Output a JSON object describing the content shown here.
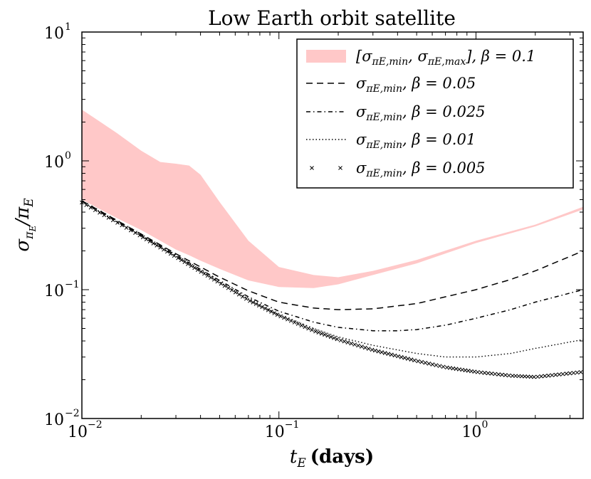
{
  "chart_data": {
    "type": "line",
    "title": "Low Earth orbit satellite",
    "xlabel": "t_E (days)",
    "xlabel_sym": "t",
    "xlabel_sub": "E",
    "xlabel_unit": "(days)",
    "ylabel": "σ_πE / π_E",
    "xscale": "log",
    "yscale": "log",
    "xlim": [
      0.01,
      3.5
    ],
    "ylim": [
      0.01,
      10
    ],
    "xticks": [
      {
        "value": 0.01,
        "base": "10",
        "exp": "−2"
      },
      {
        "value": 0.1,
        "base": "10",
        "exp": "−1"
      },
      {
        "value": 1,
        "base": "10",
        "exp": "0"
      }
    ],
    "yticks": [
      {
        "value": 0.01,
        "base": "10",
        "exp": "−2"
      },
      {
        "value": 0.1,
        "base": "10",
        "exp": "−1"
      },
      {
        "value": 1,
        "base": "10",
        "exp": "0"
      },
      {
        "value": 10,
        "base": "10",
        "exp": "1"
      }
    ],
    "band": {
      "name": "[σπE,min, σπE,max], β = 0.1",
      "color": "#ffc8c8",
      "x": [
        0.01,
        0.015,
        0.02,
        0.025,
        0.03,
        0.035,
        0.04,
        0.05,
        0.07,
        0.1,
        0.15,
        0.2,
        0.3,
        0.5,
        1,
        2,
        3.5
      ],
      "upper": [
        2.5,
        1.65,
        1.2,
        0.98,
        0.95,
        0.92,
        0.78,
        0.48,
        0.24,
        0.15,
        0.13,
        0.125,
        0.14,
        0.17,
        0.24,
        0.32,
        0.44
      ],
      "lower": [
        0.5,
        0.36,
        0.29,
        0.24,
        0.205,
        0.185,
        0.168,
        0.145,
        0.118,
        0.105,
        0.103,
        0.11,
        0.13,
        0.16,
        0.23,
        0.31,
        0.42
      ]
    },
    "series": [
      {
        "name": "σπE,min, β = 0.05",
        "style": "dashed",
        "x": [
          0.01,
          0.02,
          0.03,
          0.05,
          0.07,
          0.1,
          0.15,
          0.2,
          0.3,
          0.5,
          0.7,
          1,
          1.5,
          2,
          3.5
        ],
        "values": [
          0.49,
          0.27,
          0.19,
          0.125,
          0.098,
          0.08,
          0.072,
          0.07,
          0.071,
          0.078,
          0.088,
          0.1,
          0.12,
          0.14,
          0.2
        ]
      },
      {
        "name": "σπE,min, β = 0.025",
        "style": "dashdot",
        "x": [
          0.01,
          0.02,
          0.03,
          0.05,
          0.07,
          0.1,
          0.15,
          0.2,
          0.3,
          0.4,
          0.5,
          0.7,
          1,
          1.5,
          2,
          3.5
        ],
        "values": [
          0.485,
          0.265,
          0.185,
          0.118,
          0.088,
          0.068,
          0.056,
          0.051,
          0.048,
          0.048,
          0.049,
          0.053,
          0.06,
          0.07,
          0.08,
          0.1
        ]
      },
      {
        "name": "σπE,min, β = 0.01",
        "style": "dotted",
        "x": [
          0.01,
          0.02,
          0.03,
          0.05,
          0.07,
          0.1,
          0.15,
          0.2,
          0.3,
          0.5,
          0.7,
          1,
          1.5,
          2,
          3.5
        ],
        "values": [
          0.48,
          0.262,
          0.182,
          0.115,
          0.085,
          0.064,
          0.05,
          0.043,
          0.037,
          0.032,
          0.03,
          0.03,
          0.032,
          0.035,
          0.041
        ]
      },
      {
        "name": "σπE,min, β = 0.005",
        "style": "cross",
        "x": [
          0.01,
          0.02,
          0.03,
          0.05,
          0.07,
          0.1,
          0.15,
          0.2,
          0.3,
          0.5,
          0.7,
          1,
          1.5,
          2,
          3.5
        ],
        "values": [
          0.475,
          0.26,
          0.18,
          0.113,
          0.083,
          0.063,
          0.048,
          0.041,
          0.034,
          0.028,
          0.025,
          0.023,
          0.0215,
          0.021,
          0.023
        ]
      }
    ],
    "legend": [
      {
        "style": "band",
        "sym": "[σ",
        "sub1": "πE,min",
        "mid": ", σ",
        "sub2": "πE,max",
        "tail": "], β = 0.1"
      },
      {
        "style": "dashed",
        "sym": "σ",
        "sub": "πE,min",
        "tail": ", β = 0.05"
      },
      {
        "style": "dashdot",
        "sym": "σ",
        "sub": "πE,min",
        "tail": ", β = 0.025"
      },
      {
        "style": "dotted",
        "sym": "σ",
        "sub": "πE,min",
        "tail": ", β = 0.01"
      },
      {
        "style": "cross",
        "sym": "σ",
        "sub": "πE,min",
        "tail": ", β = 0.005"
      }
    ],
    "legend_position": "top-right",
    "grid": false
  }
}
